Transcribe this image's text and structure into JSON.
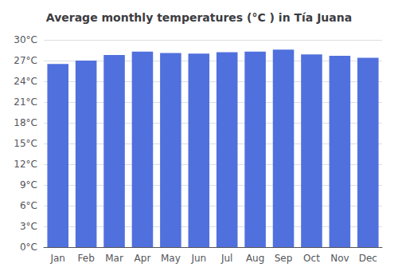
{
  "chart_data": {
    "type": "bar",
    "title": "Average monthly temperatures (°C ) in Tía Juana",
    "categories": [
      "Jan",
      "Feb",
      "Mar",
      "Apr",
      "May",
      "Jun",
      "Jul",
      "Aug",
      "Sep",
      "Oct",
      "Nov",
      "Dec"
    ],
    "values": [
      26.5,
      27.0,
      27.8,
      28.3,
      28.1,
      28.0,
      28.2,
      28.3,
      28.6,
      27.9,
      27.7,
      27.4
    ],
    "ylim": [
      0,
      30
    ],
    "yticks": [
      {
        "value": 0,
        "label": "0°C"
      },
      {
        "value": 3,
        "label": "3°C"
      },
      {
        "value": 6,
        "label": "6°C"
      },
      {
        "value": 9,
        "label": "9°C"
      },
      {
        "value": 12,
        "label": "12°C"
      },
      {
        "value": 15,
        "label": "15°C"
      },
      {
        "value": 18,
        "label": "18°C"
      },
      {
        "value": 21,
        "label": "21°C"
      },
      {
        "value": 24,
        "label": "24°C"
      },
      {
        "value": 27,
        "label": "27°C"
      },
      {
        "value": 30,
        "label": "30°C"
      }
    ],
    "grid": true
  }
}
